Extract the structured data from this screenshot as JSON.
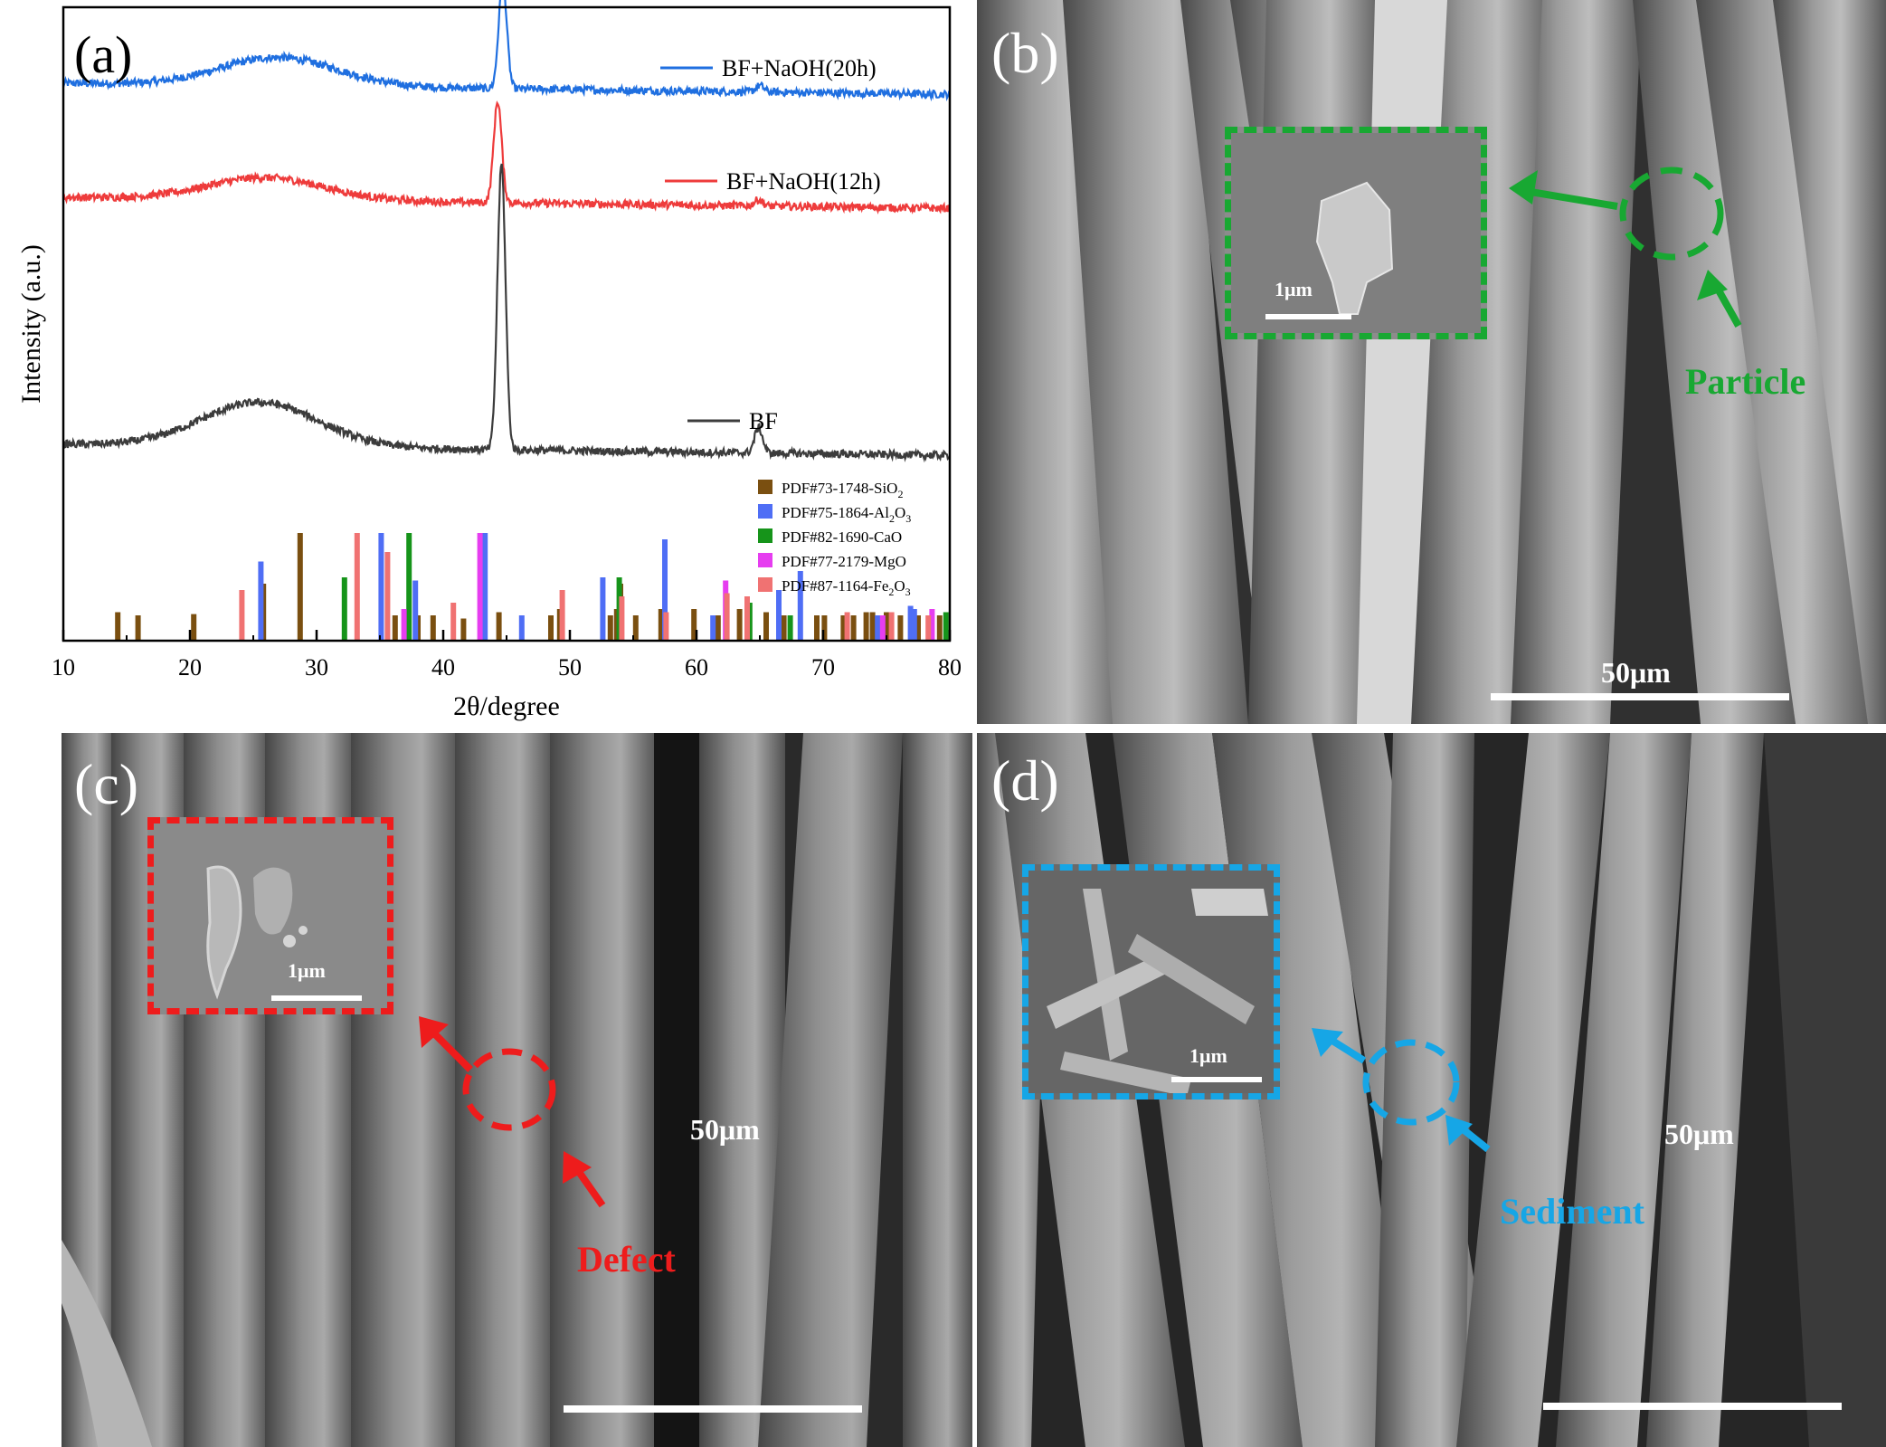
{
  "panel_a": {
    "label": "(a)",
    "chart_data": {
      "type": "line",
      "xlabel": "2θ/degree",
      "ylabel": "Intensity (a.u.)",
      "xlim": [
        10,
        80
      ],
      "xticks": [
        10,
        20,
        30,
        40,
        50,
        60,
        70,
        80
      ],
      "series": [
        {
          "name": "BF+NaOH(20h)",
          "color": "#1f6fe0",
          "baseline": 0.88,
          "hump_center": 27,
          "hump_height": 0.045,
          "peaks": [
            [
              44.7,
              0.17
            ],
            [
              65.0,
              0.01
            ]
          ]
        },
        {
          "name": "BF+NaOH(12h)",
          "color": "#ee3b3b",
          "baseline": 0.7,
          "hump_center": 26,
          "hump_height": 0.035,
          "peaks": [
            [
              44.3,
              0.16
            ],
            [
              64.9,
              0.01
            ]
          ]
        },
        {
          "name": "BF",
          "color": "#3c3c3c",
          "baseline": 0.31,
          "hump_center": 25.5,
          "hump_height": 0.07,
          "peaks": [
            [
              44.6,
              0.45
            ],
            [
              64.9,
              0.04
            ]
          ]
        }
      ],
      "references": [
        {
          "name": "PDF#73-1748-SiO",
          "sub": "2",
          "color": "#7a4f10",
          "sticks": [
            [
              14.3,
              0.045
            ],
            [
              15.9,
              0.04
            ],
            [
              20.3,
              0.042
            ],
            [
              25.8,
              0.09
            ],
            [
              28.7,
              0.17
            ],
            [
              36.2,
              0.04
            ],
            [
              38.0,
              0.04
            ],
            [
              39.2,
              0.04
            ],
            [
              41.6,
              0.035
            ],
            [
              44.4,
              0.045
            ],
            [
              48.5,
              0.04
            ],
            [
              49.2,
              0.05
            ],
            [
              53.2,
              0.04
            ],
            [
              53.7,
              0.05
            ],
            [
              54.0,
              0.09
            ],
            [
              55.2,
              0.04
            ],
            [
              57.2,
              0.05
            ],
            [
              59.8,
              0.05
            ],
            [
              61.7,
              0.04
            ],
            [
              63.4,
              0.05
            ],
            [
              65.5,
              0.045
            ],
            [
              66.9,
              0.04
            ],
            [
              69.5,
              0.04
            ],
            [
              70.1,
              0.04
            ],
            [
              71.6,
              0.04
            ],
            [
              72.4,
              0.04
            ],
            [
              73.4,
              0.045
            ],
            [
              73.9,
              0.045
            ],
            [
              75.0,
              0.045
            ],
            [
              76.1,
              0.04
            ],
            [
              77.5,
              0.04
            ],
            [
              79.2,
              0.04
            ]
          ]
        },
        {
          "name": "PDF#75-1864-Al",
          "sub": "2",
          "suffix": "O",
          "sub2": "3",
          "color": "#4f6ef5",
          "sticks": [
            [
              25.6,
              0.125
            ],
            [
              35.1,
              0.17
            ],
            [
              37.8,
              0.095
            ],
            [
              43.3,
              0.17
            ],
            [
              46.2,
              0.04
            ],
            [
              52.6,
              0.1
            ],
            [
              57.5,
              0.16
            ],
            [
              61.3,
              0.04
            ],
            [
              66.5,
              0.08
            ],
            [
              68.2,
              0.11
            ],
            [
              74.3,
              0.04
            ],
            [
              76.9,
              0.055
            ],
            [
              77.2,
              0.05
            ]
          ]
        },
        {
          "name": "PDF#82-1690-CaO",
          "color": "#16941a",
          "sticks": [
            [
              32.2,
              0.1
            ],
            [
              37.3,
              0.17
            ],
            [
              53.9,
              0.1
            ],
            [
              64.2,
              0.06
            ],
            [
              67.4,
              0.04
            ],
            [
              79.7,
              0.045
            ]
          ]
        },
        {
          "name": "PDF#77-2179-MgO",
          "color": "#e63df0",
          "sticks": [
            [
              36.9,
              0.05
            ],
            [
              42.9,
              0.17
            ],
            [
              62.3,
              0.095
            ],
            [
              74.7,
              0.04
            ],
            [
              78.6,
              0.05
            ]
          ]
        },
        {
          "name": "PDF#87-1164-Fe",
          "sub": "2",
          "suffix": "O",
          "sub2": "3",
          "color": "#f07272",
          "sticks": [
            [
              24.1,
              0.08
            ],
            [
              33.2,
              0.17
            ],
            [
              35.6,
              0.14
            ],
            [
              40.8,
              0.06
            ],
            [
              49.4,
              0.08
            ],
            [
              54.1,
              0.07
            ],
            [
              57.6,
              0.045
            ],
            [
              62.4,
              0.075
            ],
            [
              64.0,
              0.07
            ],
            [
              71.9,
              0.045
            ],
            [
              75.4,
              0.045
            ],
            [
              78.3,
              0.04
            ]
          ]
        }
      ]
    }
  },
  "panel_b": {
    "label": "(b)",
    "scale": "50μm",
    "inset_scale": "1μm",
    "callout": "Particle",
    "accent": "#18a832"
  },
  "panel_c": {
    "label": "(c)",
    "scale": "50μm",
    "inset_scale": "1μm",
    "callout": "Defect",
    "accent": "#ee1c1c"
  },
  "panel_d": {
    "label": "(d)",
    "scale": "50μm",
    "inset_scale": "1μm",
    "callout": "Sediment",
    "accent": "#16a6e6"
  }
}
